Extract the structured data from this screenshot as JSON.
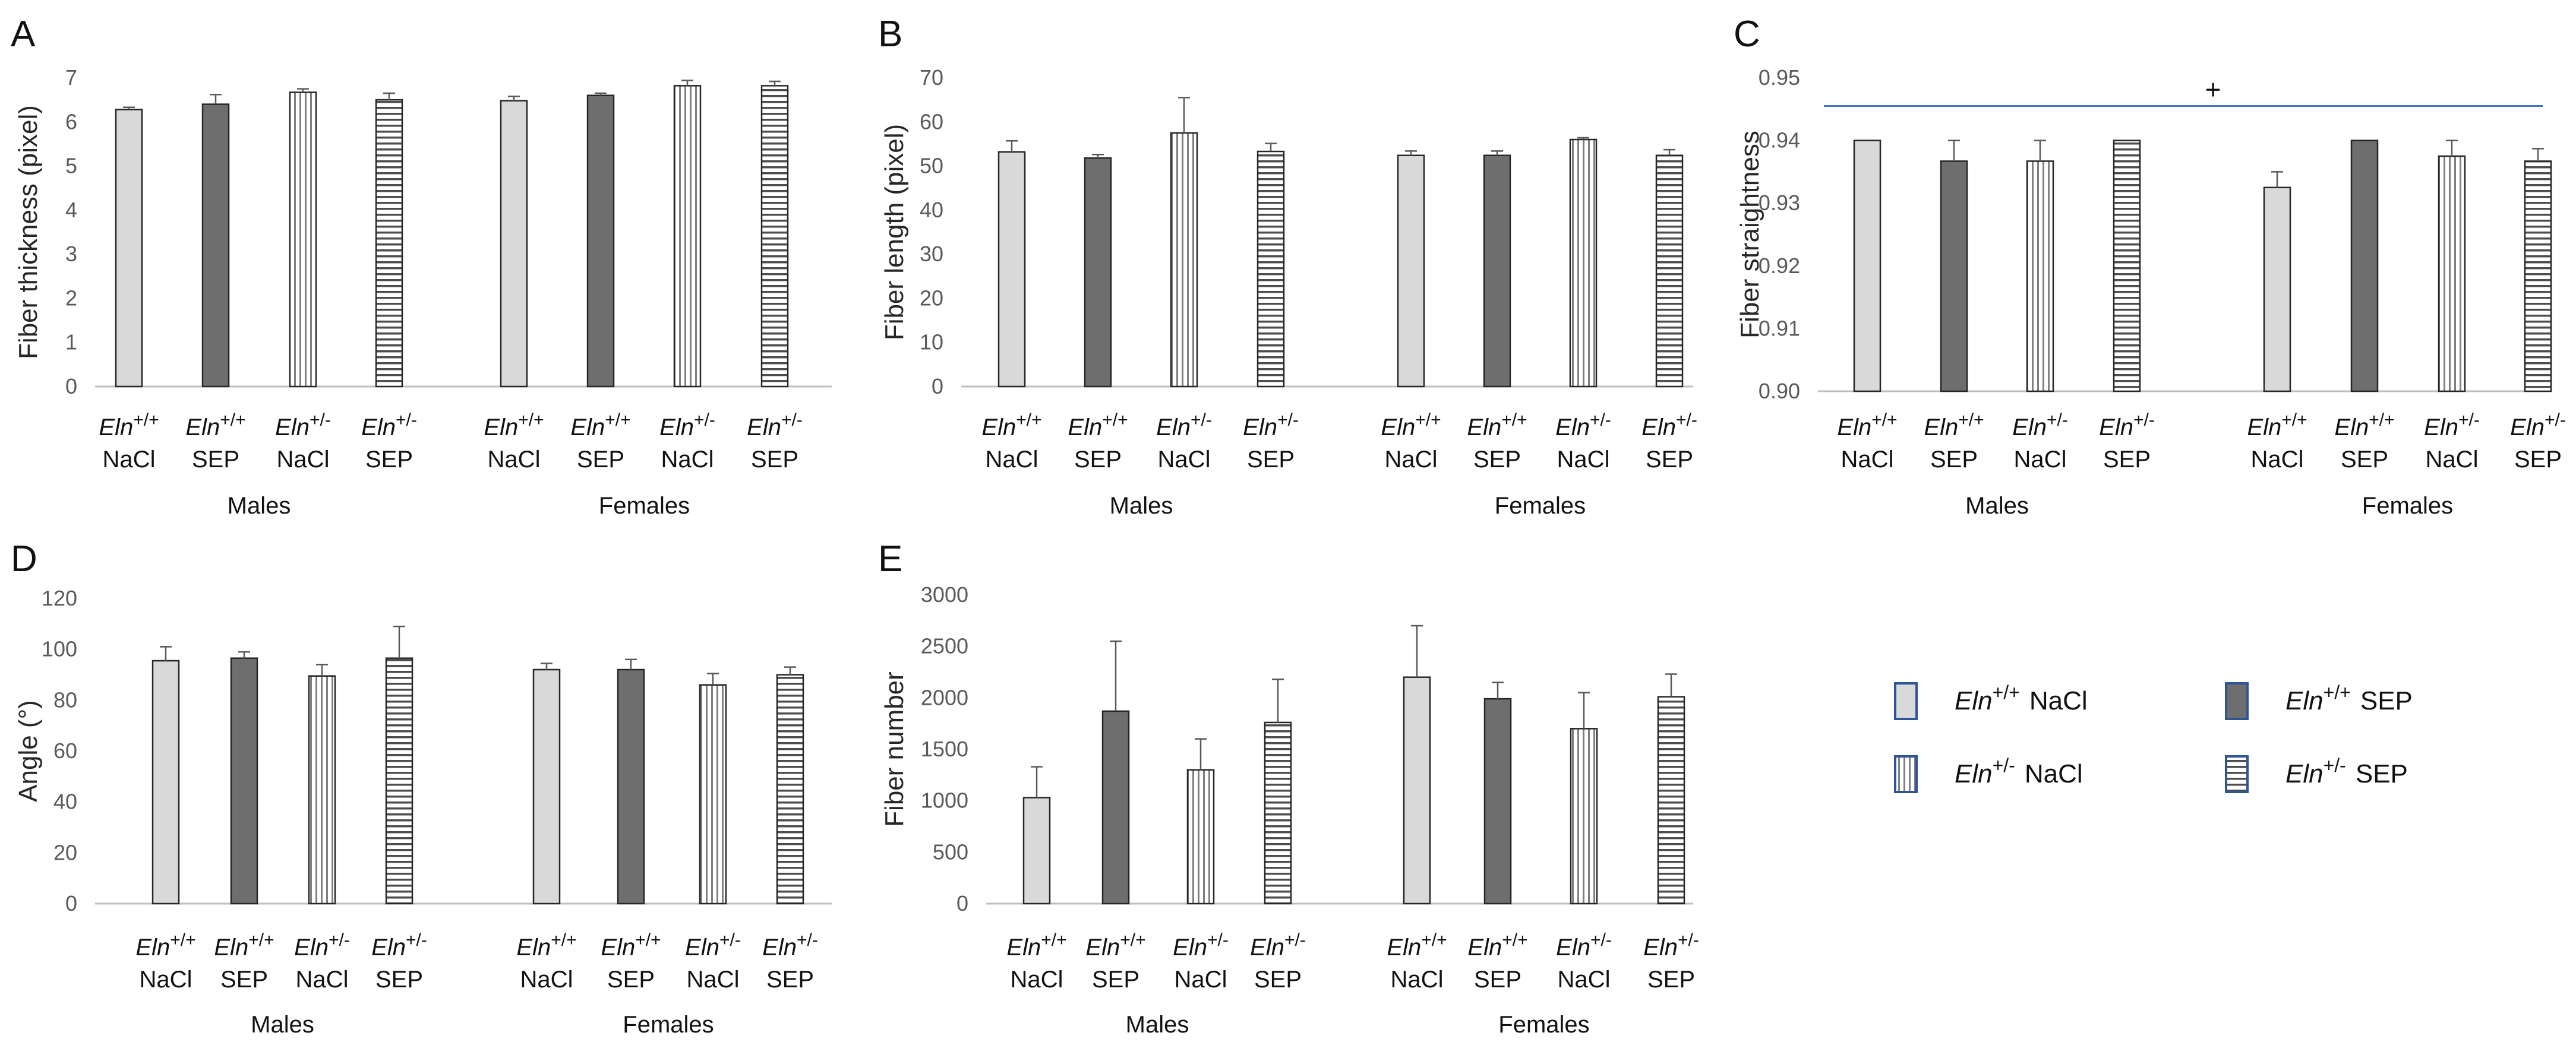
{
  "colors": {
    "wt_nacl": "#d9d9d9",
    "wt_sep": "#6e6e6e",
    "het_stripe": "#7f7f7f",
    "bar_stroke": "#262626",
    "axis": "#bfbfbf",
    "legend_border": "#2f5597",
    "sig_line": "#4472c4"
  },
  "legend": {
    "items": [
      {
        "gene": "Eln",
        "sup": "+/+",
        "treatment": "NaCl",
        "pattern": "wt_nacl"
      },
      {
        "gene": "Eln",
        "sup": "+/+",
        "treatment": "SEP",
        "pattern": "wt_sep"
      },
      {
        "gene": "Eln",
        "sup": "+/-",
        "treatment": "NaCl",
        "pattern": "het_vstripe"
      },
      {
        "gene": "Eln",
        "sup": "+/-",
        "treatment": "SEP",
        "pattern": "het_hstripe"
      }
    ]
  },
  "chart_data": [
    {
      "panel": "A",
      "type": "bar",
      "ylabel": "Fiber thickness (pixel)",
      "ylim": [
        0,
        7
      ],
      "yticks": [
        "0",
        "1",
        "2",
        "3",
        "4",
        "5",
        "6",
        "7"
      ],
      "groups": [
        "Males",
        "Females"
      ],
      "categories": [
        {
          "gene": "Eln",
          "sup": "+/+",
          "treatment": "NaCl"
        },
        {
          "gene": "Eln",
          "sup": "+/+",
          "treatment": "SEP"
        },
        {
          "gene": "Eln",
          "sup": "+/-",
          "treatment": "NaCl"
        },
        {
          "gene": "Eln",
          "sup": "+/-",
          "treatment": "SEP"
        }
      ],
      "values": [
        [
          6.28,
          6.4,
          6.67,
          6.5
        ],
        [
          6.48,
          6.6,
          6.82,
          6.82
        ]
      ],
      "errors": [
        [
          0.05,
          0.22,
          0.08,
          0.15
        ],
        [
          0.1,
          0.05,
          0.12,
          0.1
        ]
      ]
    },
    {
      "panel": "B",
      "type": "bar",
      "ylabel": "Fiber length (pixel)",
      "ylim": [
        0,
        70
      ],
      "yticks": [
        "0",
        "10",
        "20",
        "30",
        "40",
        "50",
        "60",
        "70"
      ],
      "groups": [
        "Males",
        "Females"
      ],
      "categories": [
        {
          "gene": "Eln",
          "sup": "+/+",
          "treatment": "NaCl"
        },
        {
          "gene": "Eln",
          "sup": "+/+",
          "treatment": "SEP"
        },
        {
          "gene": "Eln",
          "sup": "+/-",
          "treatment": "NaCl"
        },
        {
          "gene": "Eln",
          "sup": "+/-",
          "treatment": "SEP"
        }
      ],
      "values": [
        [
          53.2,
          51.8,
          57.5,
          53.3
        ],
        [
          52.4,
          52.4,
          56.0,
          52.4
        ]
      ],
      "errors": [
        [
          2.5,
          0.8,
          8.0,
          1.8
        ],
        [
          1.0,
          1.0,
          0.4,
          1.3
        ]
      ]
    },
    {
      "panel": "C",
      "type": "bar",
      "ylabel": "Fiber straightness",
      "ylim": [
        0.9,
        0.95
      ],
      "yticks": [
        "0.90",
        "0.91",
        "0.92",
        "0.93",
        "0.94",
        "0.95"
      ],
      "groups": [
        "Males",
        "Females"
      ],
      "categories": [
        {
          "gene": "Eln",
          "sup": "+/+",
          "treatment": "NaCl"
        },
        {
          "gene": "Eln",
          "sup": "+/+",
          "treatment": "SEP"
        },
        {
          "gene": "Eln",
          "sup": "+/-",
          "treatment": "NaCl"
        },
        {
          "gene": "Eln",
          "sup": "+/-",
          "treatment": "SEP"
        }
      ],
      "values": [
        [
          0.94,
          0.9367,
          0.9367,
          0.94
        ],
        [
          0.9325,
          0.94,
          0.9375,
          0.9367
        ]
      ],
      "errors": [
        [
          0.0,
          0.0033,
          0.0033,
          0.0
        ],
        [
          0.0025,
          0.0,
          0.0025,
          0.002
        ]
      ],
      "significance": {
        "symbol": "+",
        "y": 0.9455
      }
    },
    {
      "panel": "D",
      "type": "bar",
      "ylabel": "Angle (°)",
      "ylim": [
        0,
        120
      ],
      "yticks": [
        "0",
        "20",
        "40",
        "60",
        "80",
        "100",
        "120"
      ],
      "groups": [
        "Males",
        "Females"
      ],
      "categories": [
        {
          "gene": "Eln",
          "sup": "+/+",
          "treatment": "NaCl"
        },
        {
          "gene": "Eln",
          "sup": "+/+",
          "treatment": "SEP"
        },
        {
          "gene": "Eln",
          "sup": "+/-",
          "treatment": "NaCl"
        },
        {
          "gene": "Eln",
          "sup": "+/-",
          "treatment": "SEP"
        }
      ],
      "values": [
        [
          95.5,
          96.5,
          89.5,
          96.5
        ],
        [
          92.0,
          92.0,
          86.0,
          90.0
        ]
      ],
      "errors": [
        [
          5.5,
          2.5,
          4.5,
          12.5
        ],
        [
          2.5,
          4.0,
          4.5,
          3.0
        ]
      ]
    },
    {
      "panel": "E",
      "type": "bar",
      "ylabel": "Fiber number",
      "ylim": [
        0,
        3000
      ],
      "yticks": [
        "0",
        "500",
        "1000",
        "1500",
        "2000",
        "2500",
        "3000"
      ],
      "groups": [
        "Males",
        "Females"
      ],
      "categories": [
        {
          "gene": "Eln",
          "sup": "+/+",
          "treatment": "NaCl"
        },
        {
          "gene": "Eln",
          "sup": "+/+",
          "treatment": "SEP"
        },
        {
          "gene": "Eln",
          "sup": "+/-",
          "treatment": "NaCl"
        },
        {
          "gene": "Eln",
          "sup": "+/-",
          "treatment": "SEP"
        }
      ],
      "values": [
        [
          1030,
          1870,
          1300,
          1760
        ],
        [
          2200,
          1990,
          1700,
          2010
        ]
      ],
      "errors": [
        [
          300,
          680,
          300,
          420
        ],
        [
          500,
          160,
          350,
          220
        ]
      ]
    }
  ]
}
